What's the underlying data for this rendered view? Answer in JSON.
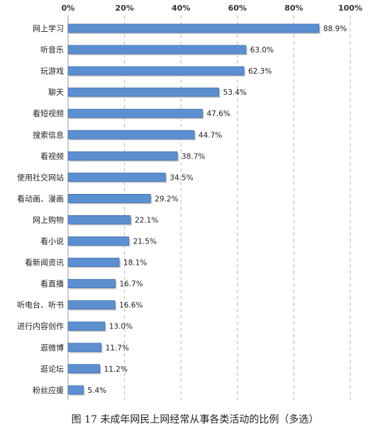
{
  "caption": "图 17 未成年网民上网经常从事各类活动的比例（多选）",
  "chart_data": {
    "type": "bar",
    "orientation": "horizontal",
    "title": "图 17 未成年网民上网经常从事各类活动的比例（多选）",
    "categories": [
      "网上学习",
      "听音乐",
      "玩游戏",
      "聊天",
      "看短视频",
      "搜索信息",
      "看视频",
      "使用社交网站",
      "看动画、漫画",
      "网上购物",
      "看小说",
      "看新闻资讯",
      "看直播",
      "听电台、听书",
      "进行内容创作",
      "逛微博",
      "逛论坛",
      "粉丝应援"
    ],
    "values": [
      88.9,
      63.0,
      62.3,
      53.4,
      47.6,
      44.7,
      38.7,
      34.5,
      29.2,
      22.1,
      21.5,
      18.1,
      16.7,
      16.6,
      13.0,
      11.7,
      11.2,
      5.4
    ],
    "value_labels": [
      "88.9%",
      "63.0%",
      "62.3%",
      "53.4%",
      "47.6%",
      "44.7%",
      "38.7%",
      "34.5%",
      "29.2%",
      "22.1%",
      "21.5%",
      "18.1%",
      "16.7%",
      "16.6%",
      "13.0%",
      "11.7%",
      "11.2%",
      "5.4%"
    ],
    "xlim": [
      0,
      100
    ],
    "x_ticks": [
      "0%",
      "20%",
      "40%",
      "60%",
      "80%",
      "100%"
    ],
    "x_tick_values": [
      0,
      20,
      40,
      60,
      80,
      100
    ],
    "x_axis_position": "top",
    "grid": "vertical dashed",
    "legend": "none",
    "bar_color": "#5b8fd0",
    "bar_edge_color": "#3f6fae"
  }
}
